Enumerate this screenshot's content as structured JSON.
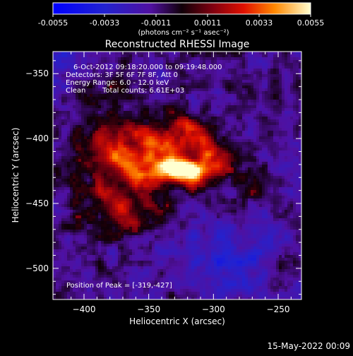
{
  "chart_data": {
    "type": "heatmap",
    "title": "Reconstructed RHESSI Image",
    "xlabel": "Heliocentric X (arcsec)",
    "ylabel": "Heliocentric Y (arcsec)",
    "xlim": [
      -424,
      -232
    ],
    "ylim": [
      -524,
      -333
    ],
    "xticks": [
      -400,
      -350,
      -300,
      -250
    ],
    "yticks": [
      -350,
      -400,
      -450,
      -500
    ],
    "colorbar": {
      "unit_label": "(photons cm⁻² s⁻¹ asec⁻²)",
      "range": [
        -0.0055,
        0.0055
      ],
      "ticks": [
        "-0.0055",
        "-0.0033",
        "-0.0011",
        "0.0011",
        "0.0033",
        "0.0055"
      ]
    },
    "annotations": [
      "6-Oct-2012 09:18:20.000 to 09:19:48.000",
      "Detectors: 3F 5F 6F 7F 8F, Att 0",
      "Energy Range: 6.0 - 12.0 keV",
      "Clean",
      "Total counts: 6.61E+03"
    ],
    "peak": {
      "label": "Position of Peak = [-319,-427]",
      "x": -319,
      "y": -427
    },
    "grid": false
  },
  "footer": {
    "timestamp": "15-May-2022 00:09"
  }
}
